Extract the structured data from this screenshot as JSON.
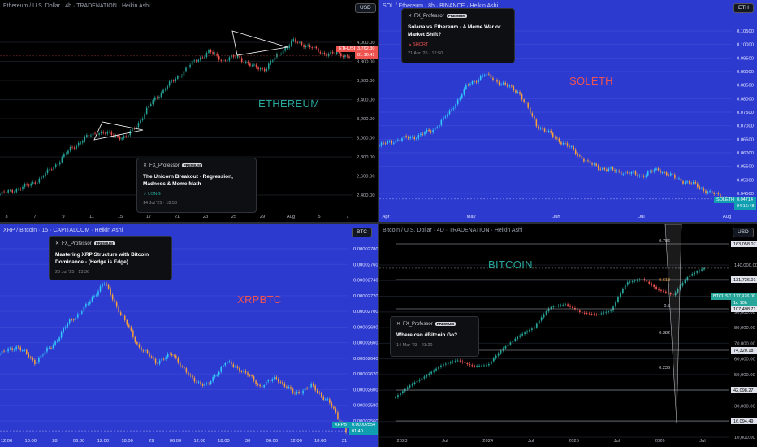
{
  "colors": {
    "up": "#26a69a",
    "down": "#ef5350",
    "orange": "#f7a23a",
    "cyan": "#33ccff",
    "blue_bg": "#2d3ad0",
    "pink": "#ff6b9b",
    "axis_text": "#b2b5be",
    "fib_line": "#9598a1"
  },
  "panels": {
    "eth": {
      "header": "Ethereum / U.S. Dollar · 4h · TRADENATION · Heikin Ashi",
      "currency": "USD",
      "big_label": "ETHEREUM",
      "symbol_tag": "ETHUSD",
      "price_tag": "3,762.30",
      "time_tag": "01:16:41",
      "post": {
        "author": "FX_Professor",
        "badge": "PREMIUM",
        "title": "The Unicorn Breakout - Regression, Madness & Meme Math",
        "tag": "↗ LONG",
        "date": "14 Jul '25 · 18:50"
      }
    },
    "sol": {
      "header": "SOL / Ethereum · 8h · BINANCE · Heikin Ashi",
      "currency": "ETH",
      "big_label": "SOLETH",
      "symbol_tag": "SOLETH",
      "price_tag": "0.04714",
      "time_tag": "04:16:48",
      "post": {
        "author": "FX_Professor",
        "badge": "PREMIUM",
        "title": "Solana vs Ethereum - A Meme War or Market Shift?",
        "tag": "↘ SHORT",
        "date": "21 Apr '25 · 12:50"
      }
    },
    "xrp": {
      "header": "XRP / Bitcoin · 15 · CAPITALCOM · Heikin Ashi",
      "currency": "BTC",
      "big_label": "XRPBTC",
      "symbol_tag": "XRPBTC",
      "price_tag": "0.00002554",
      "time_tag": "01:40",
      "post": {
        "author": "FX_Professor",
        "badge": "PREMIUM",
        "title": "Mastering XRP Structure with Bitcoin Dominance - (Hedge is Edge)",
        "date": "28 Jul '25 · 13:36"
      }
    },
    "btc": {
      "header": "Bitcoin / U.S. Dollar · 4D · TRADENATION · Heikin Ashi",
      "currency": "USD",
      "big_label": "BITCOIN",
      "symbol_tag": "BTCUSD",
      "price_tag": "117,926.00",
      "time_tag": "1d 10h",
      "fib_labels": [
        "0.786",
        "0.618",
        "0.5",
        "0.382",
        "0.236"
      ],
      "post": {
        "author": "FX_Professor",
        "badge": "PREMIUM",
        "title": "Where can #Bitcoin Go?",
        "date": "14 Mar '23 · 21:20"
      }
    }
  },
  "chart_data": [
    {
      "type": "line",
      "id": "eth",
      "title": "Ethereum / U.S. Dollar · 4h · TRADENATION · Heikin Ashi",
      "y_ticks": [
        "4,000.00",
        "3,800.00",
        "3,600.00",
        "3,400.00",
        "3,200.00",
        "3,000.00",
        "2,800.00",
        "2,600.00",
        "2,400.00"
      ],
      "x_ticks": [
        "3",
        "7",
        "9",
        "11",
        "15",
        "17",
        "21",
        "23",
        "25",
        "29",
        "Aug",
        "5",
        "7"
      ],
      "ylim": [
        2300,
        4120
      ],
      "x": [
        0,
        4,
        8,
        12,
        16,
        20,
        24,
        28,
        32,
        36,
        40,
        44,
        48,
        52,
        56,
        60,
        64,
        68,
        72,
        76,
        80,
        84,
        88,
        92,
        96,
        100
      ],
      "values": [
        2460,
        2500,
        2540,
        2620,
        2740,
        2880,
        2980,
        3050,
        3020,
        2990,
        3150,
        3350,
        3480,
        3600,
        3720,
        3800,
        3720,
        3760,
        3660,
        3640,
        3790,
        3900,
        3860,
        3790,
        3780,
        3762
      ]
    },
    {
      "type": "line",
      "id": "sol",
      "title": "SOL / Ethereum · 8h · BINANCE · Heikin Ashi",
      "y_ticks": [
        "0.10500",
        "0.10000",
        "0.09500",
        "0.09000",
        "0.08500",
        "0.08000",
        "0.07500",
        "0.07000",
        "0.06500",
        "0.06000",
        "0.05500",
        "0.05000",
        "0.04500"
      ],
      "x_ticks": [
        "Apr",
        "May",
        "Jun",
        "Jul",
        "Aug"
      ],
      "ylim": [
        0.0435,
        0.108
      ],
      "x": [
        0,
        5,
        10,
        15,
        20,
        25,
        30,
        35,
        40,
        45,
        50,
        55,
        60,
        65,
        70,
        75,
        80,
        85,
        90,
        95,
        100
      ],
      "values": [
        0.065,
        0.067,
        0.068,
        0.07,
        0.076,
        0.085,
        0.089,
        0.086,
        0.083,
        0.072,
        0.068,
        0.064,
        0.059,
        0.057,
        0.056,
        0.055,
        0.057,
        0.054,
        0.052,
        0.049,
        0.0471
      ]
    },
    {
      "type": "line",
      "id": "xrp",
      "title": "XRP / Bitcoin · 15 · CAPITALCOM · Heikin Ashi",
      "y_ticks": [
        "0.00002780",
        "0.00002760",
        "0.00002740",
        "0.00002720",
        "0.00002700",
        "0.00002680",
        "0.00002660",
        "0.00002640",
        "0.00002620",
        "0.00002600",
        "0.00002580",
        "0.00002560"
      ],
      "x_ticks": [
        "12:00",
        "18:00",
        "28",
        "06:00",
        "12:00",
        "18:00",
        "29",
        "06:00",
        "12:00",
        "18:00",
        "30",
        "06:00",
        "12:00",
        "18:00",
        "31"
      ],
      "ylim": [
        2.548e-05,
        2.792e-05
      ],
      "x": [
        0,
        5,
        10,
        15,
        20,
        25,
        30,
        35,
        40,
        45,
        50,
        55,
        60,
        65,
        70,
        75,
        80,
        85,
        90,
        95,
        100
      ],
      "values": [
        2.65e-05,
        2.66e-05,
        2.64e-05,
        2.66e-05,
        2.69e-05,
        2.71e-05,
        2.74e-05,
        2.7e-05,
        2.66e-05,
        2.64e-05,
        2.65e-05,
        2.62e-05,
        2.61e-05,
        2.64e-05,
        2.63e-05,
        2.61e-05,
        2.62e-05,
        2.6e-05,
        2.61e-05,
        2.59e-05,
        2.554e-05
      ]
    },
    {
      "type": "line",
      "id": "btc",
      "title": "Bitcoin / U.S. Dollar · 4D · TRADENATION · Heikin Ashi",
      "y_ticks": [
        "140,000.00",
        "120,000.00",
        "100,000.00",
        "90,000.00",
        "80,000.00",
        "70,000.00",
        "60,000.00",
        "50,000.00",
        "40,000.00",
        "30,000.00",
        "20,000.00",
        "10,000.00"
      ],
      "price_levels": [
        "163,058.07",
        "131,736.01",
        "107,498.71",
        "74,320.18",
        "42,098.27",
        "16,094.49"
      ],
      "x_ticks": [
        "2023",
        "Jul",
        "2024",
        "Jul",
        "2025",
        "Jul",
        "2026",
        "Jul"
      ],
      "log_scale": true,
      "ylim": [
        9000,
        175000
      ],
      "x": [
        0,
        5,
        10,
        15,
        20,
        25,
        30,
        35,
        40,
        45,
        50,
        55,
        60,
        65,
        70,
        75,
        80,
        85,
        90,
        95,
        100
      ],
      "values": [
        16500,
        20000,
        23000,
        27000,
        29000,
        26500,
        27000,
        35000,
        42000,
        48000,
        65000,
        68000,
        60000,
        58000,
        62000,
        95000,
        100000,
        85000,
        78000,
        105000,
        117926
      ]
    }
  ]
}
